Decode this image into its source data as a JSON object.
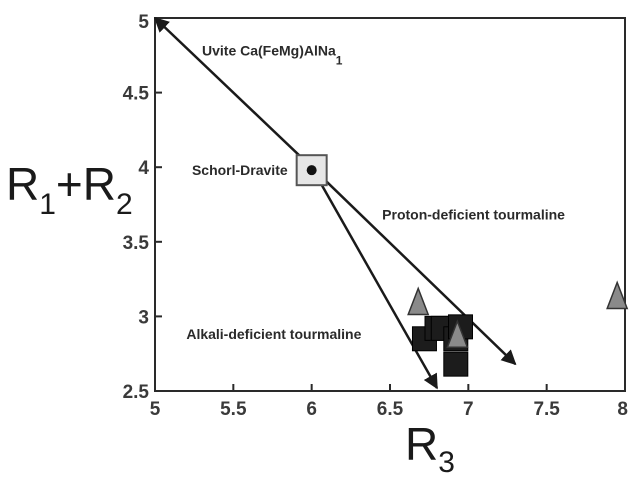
{
  "chart_data": {
    "type": "scatter",
    "xlim": [
      5,
      8
    ],
    "ylim": [
      2.5,
      5
    ],
    "x_ticks": [
      "5",
      "5.5",
      "6",
      "6.5",
      "7",
      "7.5",
      "8"
    ],
    "y_ticks": [
      "2.5",
      "3",
      "3.5",
      "4",
      "4.5",
      "5"
    ],
    "xlabel": {
      "main": "R",
      "sub": "3"
    },
    "ylabel": {
      "r1": "R",
      "sub1": "1",
      "plus": "+",
      "r2": "R",
      "sub2": "2"
    },
    "grid": false,
    "vectors": [
      {
        "name": "uvite",
        "x": [
          6.0,
          5.0
        ],
        "y": [
          4.0,
          5.0
        ]
      },
      {
        "name": "proton",
        "x": [
          6.0,
          7.3
        ],
        "y": [
          4.0,
          2.68
        ]
      },
      {
        "name": "alkali",
        "x": [
          6.0,
          6.8
        ],
        "y": [
          4.0,
          2.52
        ]
      }
    ],
    "end_member": {
      "label": "Schorl-Dravite",
      "x": 6.0,
      "y": 3.98
    },
    "series": [
      {
        "marker": "square",
        "x": [
          6.72,
          6.8,
          6.84,
          6.92,
          6.92,
          6.95
        ],
        "y": [
          2.85,
          2.92,
          2.92,
          2.85,
          2.68,
          2.93
        ]
      },
      {
        "marker": "triangle",
        "x": [
          6.68,
          6.93,
          7.95
        ],
        "y": [
          3.08,
          2.86,
          3.12
        ]
      }
    ],
    "annotations": {
      "uvite": {
        "text": "Uvite Ca(FeMg)AlNa",
        "sub": "1",
        "x": 5.3,
        "y": 4.75
      },
      "proton": {
        "text": "Proton-deficient tourmaline",
        "x": 6.45,
        "y": 3.65
      },
      "alkali": {
        "text": "Alkali-deficient tourmaline",
        "x": 5.2,
        "y": 2.85
      }
    }
  }
}
